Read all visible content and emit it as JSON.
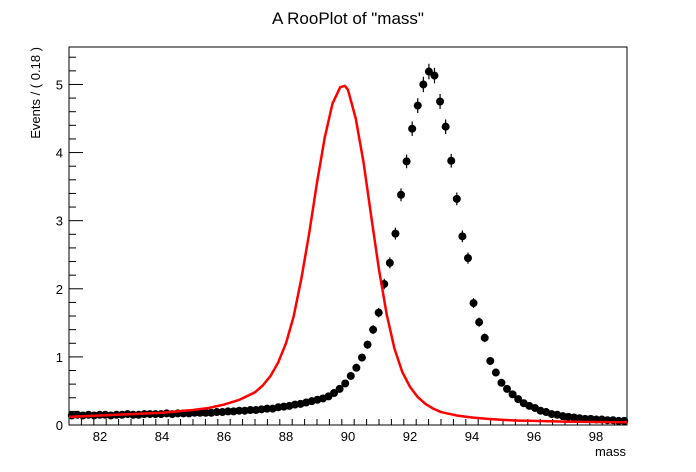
{
  "chart_data": {
    "type": "scatter",
    "title": "A RooPlot of \"mass\"",
    "xlabel": "mass",
    "ylabel": "Events / ( 0.18 )",
    "xlim": [
      81,
      99
    ],
    "ylim": [
      0,
      5.55
    ],
    "x_ticks": [
      "82",
      "84",
      "86",
      "88",
      "90",
      "92",
      "94",
      "96",
      "98"
    ],
    "y_ticks": [
      "0",
      "1",
      "2",
      "3",
      "4",
      "5"
    ],
    "grid": false,
    "legend": "none",
    "series": [
      {
        "kind": "points-with-errors",
        "color": "#000000",
        "bin_width": 0.18,
        "x_start": 81.09,
        "values": [
          0.14,
          0.15,
          0.14,
          0.15,
          0.14,
          0.15,
          0.15,
          0.14,
          0.15,
          0.15,
          0.16,
          0.15,
          0.15,
          0.16,
          0.16,
          0.16,
          0.16,
          0.17,
          0.16,
          0.17,
          0.17,
          0.17,
          0.18,
          0.18,
          0.18,
          0.18,
          0.19,
          0.19,
          0.2,
          0.2,
          0.21,
          0.21,
          0.22,
          0.22,
          0.23,
          0.24,
          0.24,
          0.26,
          0.27,
          0.28,
          0.3,
          0.31,
          0.33,
          0.35,
          0.37,
          0.39,
          0.42,
          0.47,
          0.53,
          0.61,
          0.72,
          0.84,
          0.99,
          1.18,
          1.4,
          1.65,
          2.07,
          2.38,
          2.81,
          3.38,
          3.87,
          4.35,
          4.69,
          5.0,
          5.19,
          5.13,
          4.75,
          4.38,
          3.88,
          3.32,
          2.77,
          2.45,
          1.79,
          1.51,
          1.28,
          0.94,
          0.77,
          0.62,
          0.53,
          0.45,
          0.38,
          0.32,
          0.28,
          0.25,
          0.21,
          0.19,
          0.16,
          0.15,
          0.13,
          0.12,
          0.11,
          0.1,
          0.09,
          0.09,
          0.08,
          0.08,
          0.07,
          0.07,
          0.06,
          0.06
        ]
      },
      {
        "kind": "fit-curve",
        "color": "#ff0000",
        "x": [
          81.0,
          82.0,
          83.0,
          84.0,
          84.5,
          85.0,
          85.5,
          86.0,
          86.5,
          87.0,
          87.25,
          87.5,
          87.75,
          88.0,
          88.25,
          88.5,
          88.75,
          89.0,
          89.25,
          89.5,
          89.75,
          89.9,
          90.0,
          90.25,
          90.5,
          90.75,
          91.0,
          91.25,
          91.5,
          91.75,
          92.0,
          92.25,
          92.5,
          92.75,
          93.0,
          93.5,
          94.0,
          94.5,
          95.0,
          95.5,
          96.0,
          97.0,
          98.0,
          99.0
        ],
        "y": [
          0.12,
          0.14,
          0.16,
          0.18,
          0.2,
          0.22,
          0.25,
          0.3,
          0.37,
          0.48,
          0.58,
          0.72,
          0.92,
          1.2,
          1.6,
          2.16,
          2.82,
          3.56,
          4.22,
          4.72,
          4.96,
          4.98,
          4.92,
          4.5,
          3.86,
          3.06,
          2.28,
          1.62,
          1.12,
          0.78,
          0.56,
          0.41,
          0.31,
          0.24,
          0.19,
          0.14,
          0.11,
          0.09,
          0.075,
          0.065,
          0.06,
          0.05,
          0.045,
          0.04
        ]
      }
    ]
  }
}
